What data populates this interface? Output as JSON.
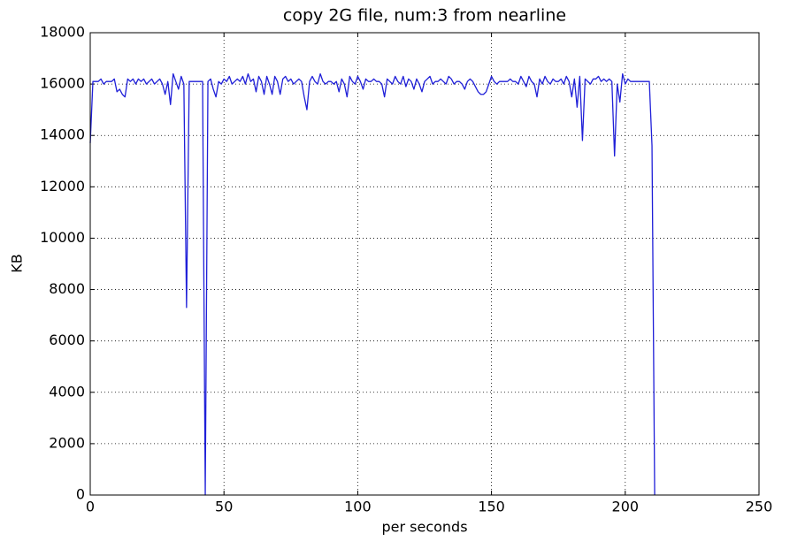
{
  "chart_data": {
    "type": "line",
    "title": "copy 2G file, num:3 from nearline",
    "x_label": "per seconds",
    "y_label": "KB",
    "x": [
      0,
      1,
      2,
      3,
      4,
      5,
      6,
      7,
      8,
      9,
      10,
      11,
      12,
      13,
      14,
      15,
      16,
      17,
      18,
      19,
      20,
      21,
      22,
      23,
      24,
      25,
      26,
      27,
      28,
      29,
      30,
      31,
      32,
      33,
      34,
      35,
      36,
      37,
      38,
      39,
      40,
      41,
      42,
      43,
      44,
      45,
      46,
      47,
      48,
      49,
      50,
      51,
      52,
      53,
      54,
      55,
      56,
      57,
      58,
      59,
      60,
      61,
      62,
      63,
      64,
      65,
      66,
      67,
      68,
      69,
      70,
      71,
      72,
      73,
      74,
      75,
      76,
      77,
      78,
      79,
      80,
      81,
      82,
      83,
      84,
      85,
      86,
      87,
      88,
      89,
      90,
      91,
      92,
      93,
      94,
      95,
      96,
      97,
      98,
      99,
      100,
      101,
      102,
      103,
      104,
      105,
      106,
      107,
      108,
      109,
      110,
      111,
      112,
      113,
      114,
      115,
      116,
      117,
      118,
      119,
      120,
      121,
      122,
      123,
      124,
      125,
      126,
      127,
      128,
      129,
      130,
      131,
      132,
      133,
      134,
      135,
      136,
      137,
      138,
      139,
      140,
      141,
      142,
      143,
      144,
      145,
      146,
      147,
      148,
      149,
      150,
      151,
      152,
      153,
      154,
      155,
      156,
      157,
      158,
      159,
      160,
      161,
      162,
      163,
      164,
      165,
      166,
      167,
      168,
      169,
      170,
      171,
      172,
      173,
      174,
      175,
      176,
      177,
      178,
      179,
      180,
      181,
      182,
      183,
      184,
      185,
      186,
      187,
      188,
      189,
      190,
      191,
      192,
      193,
      194,
      195,
      196,
      197,
      198,
      199,
      200,
      201,
      202,
      203,
      204,
      205,
      206,
      207,
      208,
      209,
      210,
      211
    ],
    "series": [
      {
        "color": "#1f1fd8",
        "values": [
          13700,
          16100,
          16100,
          16100,
          16200,
          16000,
          16100,
          16100,
          16100,
          16200,
          15700,
          15800,
          15600,
          15500,
          16200,
          16100,
          16200,
          16000,
          16200,
          16100,
          16200,
          16000,
          16100,
          16200,
          16000,
          16100,
          16200,
          16000,
          15600,
          16100,
          15200,
          16400,
          16100,
          15800,
          16300,
          16000,
          7300,
          16100,
          16100,
          16100,
          16100,
          16100,
          16100,
          0,
          16100,
          16200,
          15800,
          15500,
          16100,
          16000,
          16200,
          16100,
          16300,
          16000,
          16100,
          16200,
          16100,
          16300,
          16000,
          16400,
          16100,
          16200,
          15700,
          16300,
          16100,
          15600,
          16300,
          16000,
          15600,
          16300,
          16100,
          15600,
          16200,
          16300,
          16100,
          16200,
          16000,
          16100,
          16200,
          16100,
          15500,
          15000,
          16100,
          16300,
          16100,
          16000,
          16400,
          16100,
          16000,
          16100,
          16100,
          16000,
          16100,
          15700,
          16200,
          16000,
          15500,
          16300,
          16100,
          16000,
          16300,
          16100,
          15800,
          16200,
          16100,
          16100,
          16200,
          16100,
          16100,
          16000,
          15500,
          16200,
          16100,
          16000,
          16300,
          16100,
          16000,
          16300,
          15900,
          16200,
          16100,
          15800,
          16200,
          16000,
          15700,
          16100,
          16200,
          16300,
          16000,
          16100,
          16100,
          16200,
          16100,
          16000,
          16300,
          16200,
          16000,
          16100,
          16100,
          16000,
          15800,
          16100,
          16200,
          16100,
          15900,
          15700,
          15600,
          15600,
          15700,
          16000,
          16300,
          16100,
          16000,
          16100,
          16100,
          16100,
          16100,
          16200,
          16100,
          16100,
          16000,
          16300,
          16100,
          15900,
          16300,
          16100,
          16000,
          15500,
          16200,
          16000,
          16300,
          16100,
          16000,
          16200,
          16100,
          16100,
          16200,
          16000,
          16300,
          16100,
          15500,
          16200,
          15100,
          16300,
          13800,
          16200,
          16100,
          16000,
          16200,
          16200,
          16300,
          16100,
          16200,
          16100,
          16200,
          16100,
          13200,
          16000,
          15300,
          16400,
          16000,
          16200,
          16100,
          16100,
          16100,
          16100,
          16100,
          16100,
          16100,
          16100,
          13600,
          0
        ]
      }
    ],
    "xlim": [
      0,
      250
    ],
    "ylim": [
      0,
      18000
    ],
    "xticks": [
      0,
      50,
      100,
      150,
      200,
      250
    ],
    "yticks": [
      0,
      2000,
      4000,
      6000,
      8000,
      10000,
      12000,
      14000,
      16000,
      18000
    ],
    "grid": true
  }
}
